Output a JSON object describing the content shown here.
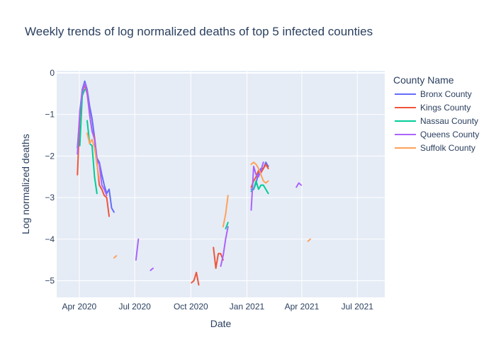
{
  "chart_data": {
    "type": "line",
    "title": "Weekly trends of log normalized deaths of top 5 infected counties",
    "xlabel": "Date",
    "ylabel": "Log normalized deaths",
    "xlim": [
      "2020-02-24",
      "2021-08-15"
    ],
    "ylim": [
      -5.4,
      0.05
    ],
    "x_ticks": [
      "2020-04-01",
      "2020-07-01",
      "2020-10-01",
      "2021-01-01",
      "2021-04-01",
      "2021-07-01"
    ],
    "x_tick_labels": [
      "Apr 2020",
      "Jul 2020",
      "Oct 2020",
      "Jan 2021",
      "Apr 2021",
      "Jul 2021"
    ],
    "y_ticks": [
      0,
      -1,
      -2,
      -3,
      -4,
      -5
    ],
    "y_tick_labels": [
      "0",
      "−1",
      "−2",
      "−3",
      "−4",
      "−5"
    ],
    "grid": true,
    "legend_title": "County Name",
    "legend_position": "right",
    "series": [
      {
        "name": "Bronx County",
        "color": "#636efa",
        "segments": [
          [
            [
              "2020-03-29",
              -1.8
            ],
            [
              "2020-04-02",
              -1.0
            ],
            [
              "2020-04-06",
              -0.4
            ],
            [
              "2020-04-10",
              -0.2
            ],
            [
              "2020-04-14",
              -0.4
            ],
            [
              "2020-04-18",
              -0.8
            ],
            [
              "2020-04-22",
              -1.1
            ],
            [
              "2020-04-26",
              -1.55
            ],
            [
              "2020-04-30",
              -2.05
            ],
            [
              "2020-05-04",
              -2.15
            ],
            [
              "2020-05-08",
              -2.45
            ],
            [
              "2020-05-12",
              -2.7
            ],
            [
              "2020-05-16",
              -2.9
            ],
            [
              "2020-05-20",
              -2.8
            ],
            [
              "2020-05-24",
              -3.25
            ],
            [
              "2020-05-28",
              -3.35
            ]
          ],
          [
            [
              "2021-01-08",
              -2.8
            ],
            [
              "2021-01-12",
              -2.8
            ],
            [
              "2021-01-16",
              -2.65
            ],
            [
              "2021-01-20",
              -2.4
            ],
            [
              "2021-01-24",
              -2.3
            ],
            [
              "2021-01-28",
              -2.3
            ],
            [
              "2021-02-01",
              -2.15
            ],
            [
              "2021-02-05",
              -2.25
            ]
          ]
        ]
      },
      {
        "name": "Kings County",
        "color": "#EF553B",
        "segments": [
          [
            [
              "2020-03-29",
              -2.45
            ],
            [
              "2020-04-02",
              -1.0
            ],
            [
              "2020-04-06",
              -0.45
            ],
            [
              "2020-04-10",
              -0.3
            ],
            [
              "2020-04-14",
              -0.5
            ],
            [
              "2020-04-18",
              -1.0
            ],
            [
              "2020-04-22",
              -1.4
            ],
            [
              "2020-04-26",
              -1.55
            ],
            [
              "2020-04-30",
              -2.15
            ],
            [
              "2020-05-04",
              -2.7
            ],
            [
              "2020-05-08",
              -2.8
            ],
            [
              "2020-05-12",
              -2.95
            ],
            [
              "2020-05-16",
              -3.0
            ],
            [
              "2020-05-20",
              -3.45
            ]
          ],
          [
            [
              "2020-10-02",
              -5.05
            ],
            [
              "2020-10-06",
              -5.0
            ],
            [
              "2020-10-10",
              -4.8
            ],
            [
              "2020-10-14",
              -5.1
            ]
          ],
          [
            [
              "2020-11-07",
              -4.2
            ],
            [
              "2020-11-11",
              -4.7
            ],
            [
              "2020-11-15",
              -4.35
            ],
            [
              "2020-11-19",
              -4.35
            ],
            [
              "2020-11-23",
              -4.5
            ]
          ],
          [
            [
              "2021-01-08",
              -2.75
            ],
            [
              "2021-01-12",
              -2.6
            ],
            [
              "2021-01-16",
              -2.5
            ],
            [
              "2021-01-20",
              -2.35
            ],
            [
              "2021-01-24",
              -2.4
            ],
            [
              "2021-01-28",
              -2.3
            ],
            [
              "2021-02-01",
              -2.2
            ],
            [
              "2021-02-05",
              -2.3
            ]
          ]
        ]
      },
      {
        "name": "Nassau County",
        "color": "#00cc96",
        "segments": [
          [
            [
              "2020-04-02",
              -1.75
            ],
            [
              "2020-04-06",
              -0.55
            ],
            [
              "2020-04-10",
              -0.4
            ]
          ],
          [
            [
              "2020-04-14",
              -1.15
            ],
            [
              "2020-04-18",
              -1.7
            ],
            [
              "2020-04-22",
              -1.75
            ],
            [
              "2020-04-26",
              -2.5
            ],
            [
              "2020-04-30",
              -2.9
            ]
          ],
          [
            [
              "2020-11-27",
              -3.75
            ],
            [
              "2020-12-01",
              -3.6
            ]
          ],
          [
            [
              "2021-01-08",
              -2.85
            ],
            [
              "2021-01-12",
              -2.8
            ],
            [
              "2021-01-16",
              -2.6
            ],
            [
              "2021-01-20",
              -2.8
            ],
            [
              "2021-01-24",
              -2.7
            ],
            [
              "2021-01-28",
              -2.7
            ],
            [
              "2021-02-05",
              -2.9
            ]
          ]
        ]
      },
      {
        "name": "Queens County",
        "color": "#ab63fa",
        "segments": [
          [
            [
              "2020-03-29",
              -1.95
            ],
            [
              "2020-04-02",
              -0.9
            ],
            [
              "2020-04-06",
              -0.45
            ],
            [
              "2020-04-10",
              -0.25
            ],
            [
              "2020-04-14",
              -0.45
            ],
            [
              "2020-04-18",
              -1.0
            ],
            [
              "2020-04-22",
              -1.4
            ],
            [
              "2020-04-26",
              -1.6
            ],
            [
              "2020-04-30",
              -2.1
            ],
            [
              "2020-05-04",
              -2.2
            ],
            [
              "2020-05-08",
              -2.7
            ],
            [
              "2020-05-12",
              -2.8
            ],
            [
              "2020-05-16",
              -2.95
            ]
          ],
          [
            [
              "2020-07-03",
              -4.5
            ],
            [
              "2020-07-07",
              -4.0
            ]
          ],
          [
            [
              "2020-07-27",
              -4.75
            ],
            [
              "2020-07-31",
              -4.7
            ]
          ],
          [
            [
              "2020-11-19",
              -4.65
            ],
            [
              "2020-11-23",
              -4.4
            ],
            [
              "2020-11-27",
              -4.0
            ],
            [
              "2020-12-01",
              -3.7
            ]
          ],
          [
            [
              "2021-01-08",
              -3.3
            ],
            [
              "2021-01-12",
              -2.25
            ],
            [
              "2021-01-16",
              -2.45
            ],
            [
              "2021-01-20",
              -2.5
            ],
            [
              "2021-01-24",
              -2.35
            ],
            [
              "2021-01-28",
              -2.15
            ]
          ],
          [
            [
              "2021-03-23",
              -2.75
            ],
            [
              "2021-03-27",
              -2.65
            ],
            [
              "2021-03-31",
              -2.7
            ]
          ]
        ]
      },
      {
        "name": "Suffolk County",
        "color": "#FFA15A",
        "segments": [
          [
            [
              "2020-04-14",
              -1.45
            ],
            [
              "2020-04-18",
              -1.7
            ],
            [
              "2020-04-22",
              -1.6
            ],
            [
              "2020-04-26",
              -1.8
            ],
            [
              "2020-04-30",
              -2.2
            ],
            [
              "2020-05-04",
              -2.55
            ]
          ],
          [
            [
              "2020-05-28",
              -4.45
            ],
            [
              "2020-06-01",
              -4.4
            ]
          ],
          [
            [
              "2020-11-23",
              -3.7
            ],
            [
              "2020-11-27",
              -3.4
            ],
            [
              "2020-12-01",
              -2.95
            ]
          ],
          [
            [
              "2021-01-08",
              -2.2
            ],
            [
              "2021-01-12",
              -2.15
            ],
            [
              "2021-01-16",
              -2.2
            ],
            [
              "2021-01-20",
              -2.3
            ],
            [
              "2021-01-24",
              -2.45
            ],
            [
              "2021-01-28",
              -2.6
            ],
            [
              "2021-02-01",
              -2.65
            ],
            [
              "2021-02-05",
              -2.6
            ]
          ],
          [
            [
              "2021-04-11",
              -4.05
            ],
            [
              "2021-04-15",
              -4.0
            ]
          ]
        ]
      }
    ]
  }
}
